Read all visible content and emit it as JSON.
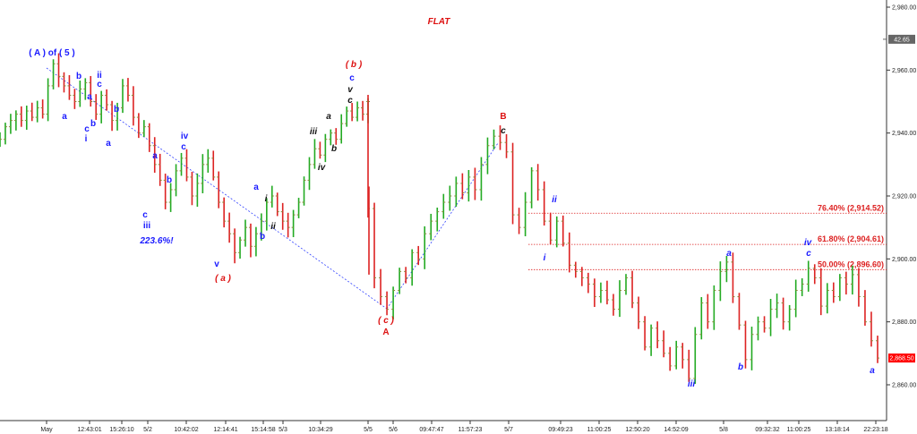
{
  "chart_data": {
    "type": "line",
    "title": "FLAT",
    "instrument_price_badges": [
      {
        "label": "42.65",
        "value": 2969.8,
        "bg": "#666666",
        "fg": "#ffffff"
      },
      {
        "label": "2,868.50",
        "value": 2868.5,
        "bg": "#ff0000",
        "fg": "#ffffff"
      }
    ],
    "y_axis": {
      "range": [
        2850,
        2985
      ],
      "ticks": [
        {
          "value": 2980,
          "label": "2,980.00"
        },
        {
          "value": 2960,
          "label": "2,960.00"
        },
        {
          "value": 2940,
          "label": "2,940.00"
        },
        {
          "value": 2920,
          "label": "2,920.00"
        },
        {
          "value": 2900,
          "label": "2,900.00"
        },
        {
          "value": 2880,
          "label": "2,880.00"
        },
        {
          "value": 2860,
          "label": "2,860.00"
        }
      ]
    },
    "x_axis": {
      "labels": [
        "May",
        "12:43:01",
        "15:26:10",
        "5/2",
        "10:42:02",
        "12:14:41",
        "15:14:58",
        "5/3",
        "10:34:29",
        "5/5",
        "5/6",
        "09:47:47",
        "11:57:23",
        "5/7",
        "09:49:23",
        "11:00:25",
        "12:50:20",
        "14:52:09",
        "5/8",
        "09:32:32",
        "11:00:25",
        "13:18:14",
        "22:23:18"
      ]
    },
    "series": [
      {
        "values": [
          2938,
          2942,
          2944,
          2946,
          2944,
          2947,
          2945,
          2948,
          2946,
          2955,
          2962,
          2958,
          2955,
          2952,
          2950,
          2954,
          2956,
          2950,
          2946,
          2952,
          2949,
          2944,
          2948,
          2955,
          2952,
          2945,
          2940,
          2942,
          2936,
          2930,
          2925,
          2918,
          2922,
          2928,
          2932,
          2926,
          2920,
          2924,
          2930,
          2932,
          2926,
          2918,
          2912,
          2908,
          2902,
          2906,
          2910,
          2904,
          2908,
          2912,
          2918,
          2920,
          2915,
          2912,
          2910,
          2914,
          2918,
          2925,
          2930,
          2935,
          2933,
          2938,
          2940,
          2938,
          2943,
          2947,
          2945,
          2948,
          2946,
          2950,
          2916,
          2894,
          2888,
          2884,
          2890,
          2896,
          2894,
          2902,
          2900,
          2908,
          2912,
          2915,
          2918,
          2920,
          2924,
          2921,
          2926,
          2922,
          2930,
          2936,
          2939,
          2937,
          2934,
          2914,
          2910,
          2918,
          2928,
          2922,
          2912,
          2906,
          2912,
          2905,
          2898,
          2896,
          2894,
          2892,
          2888,
          2890,
          2887,
          2884,
          2890,
          2894,
          2886,
          2880,
          2872,
          2878,
          2874,
          2870,
          2866,
          2872,
          2868,
          2862,
          2876,
          2886,
          2880,
          2890,
          2896,
          2899,
          2888,
          2879,
          2868,
          2876,
          2880,
          2878,
          2884,
          2886,
          2880,
          2884,
          2890,
          2892,
          2897,
          2894,
          2885,
          2890,
          2888,
          2894,
          2892,
          2895,
          2888,
          2880,
          2874,
          2868.5
        ]
      }
    ],
    "fib_levels": [
      {
        "label": "76.40% (2,914.52)",
        "value": 2914.52
      },
      {
        "label": "61.80% (2,904.61)",
        "value": 2904.61
      },
      {
        "label": "50.00% (2,896.60)",
        "value": 2896.6
      }
    ],
    "wave_labels": [
      {
        "text": "( A ) of ( 5 )",
        "color": "#1a1aff",
        "style": "bold"
      },
      {
        "text": "a",
        "color": "#1a1aff",
        "style": "bold"
      },
      {
        "text": "b",
        "color": "#1a1aff",
        "style": "bold"
      },
      {
        "text": "ii",
        "color": "#1a1aff",
        "style": "bold"
      },
      {
        "text": "c",
        "color": "#1a1aff",
        "style": "bold"
      },
      {
        "text": "a",
        "color": "#1a1aff",
        "style": "bold"
      },
      {
        "text": "c",
        "color": "#1a1aff",
        "style": "bold"
      },
      {
        "text": "b",
        "color": "#1a1aff",
        "style": "bold"
      },
      {
        "text": "i",
        "color": "#1a1aff",
        "style": "bold"
      },
      {
        "text": "b",
        "color": "#1a1aff",
        "style": "bold"
      },
      {
        "text": "a",
        "color": "#1a1aff",
        "style": "bold"
      },
      {
        "text": "c",
        "color": "#1a1aff",
        "style": "bold"
      },
      {
        "text": "iii",
        "color": "#1a1aff",
        "style": "bold"
      },
      {
        "text": "223.6%!",
        "color": "#1a1aff",
        "style": "bold-italic"
      },
      {
        "text": "a",
        "color": "#1a1aff",
        "style": "bold"
      },
      {
        "text": "b",
        "color": "#1a1aff",
        "style": "bold"
      },
      {
        "text": "iv",
        "color": "#1a1aff",
        "style": "bold"
      },
      {
        "text": "c",
        "color": "#1a1aff",
        "style": "bold"
      },
      {
        "text": "v",
        "color": "#1a1aff",
        "style": "bold"
      },
      {
        "text": "( a )",
        "color": "#dd1111",
        "style": "bold-italic"
      },
      {
        "text": "a",
        "color": "#1a1aff",
        "style": "bold"
      },
      {
        "text": "b",
        "color": "#1a1aff",
        "style": "bold"
      },
      {
        "text": "i",
        "color": "#111111",
        "style": "bold-italic"
      },
      {
        "text": "ii",
        "color": "#111111",
        "style": "bold-italic"
      },
      {
        "text": "iii",
        "color": "#111111",
        "style": "bold-italic"
      },
      {
        "text": "iv",
        "color": "#111111",
        "style": "bold-italic"
      },
      {
        "text": "a",
        "color": "#111111",
        "style": "bold-italic"
      },
      {
        "text": "b",
        "color": "#111111",
        "style": "bold-italic"
      },
      {
        "text": "c",
        "color": "#111111",
        "style": "bold-italic"
      },
      {
        "text": "v",
        "color": "#111111",
        "style": "bold-italic"
      },
      {
        "text": "c",
        "color": "#1a1aff",
        "style": "bold"
      },
      {
        "text": "( b )",
        "color": "#dd1111",
        "style": "bold-italic"
      },
      {
        "text": "( c )",
        "color": "#dd1111",
        "style": "bold-italic"
      },
      {
        "text": "A",
        "color": "#dd1111",
        "style": "bold"
      },
      {
        "text": "B",
        "color": "#dd1111",
        "style": "bold"
      },
      {
        "text": "c",
        "color": "#111111",
        "style": "bold-italic"
      },
      {
        "text": "ii",
        "color": "#1a1aff",
        "style": "bold-italic"
      },
      {
        "text": "i",
        "color": "#1a1aff",
        "style": "bold-italic"
      },
      {
        "text": "iii",
        "color": "#1a1aff",
        "style": "bold-italic"
      },
      {
        "text": "a",
        "color": "#1a1aff",
        "style": "bold-italic"
      },
      {
        "text": "b",
        "color": "#1a1aff",
        "style": "bold-italic"
      },
      {
        "text": "iv",
        "color": "#1a1aff",
        "style": "bold-italic"
      },
      {
        "text": "c",
        "color": "#1a1aff",
        "style": "bold-italic"
      },
      {
        "text": "a",
        "color": "#1a1aff",
        "style": "bold-italic"
      }
    ],
    "colors": {
      "up_bar": "#22aa22",
      "down_bar": "#dd2222",
      "bar_mix": "#8a8a3a",
      "trendline": "#3344ff",
      "fib_line": "#dd2222",
      "title": "#dd1111"
    }
  }
}
